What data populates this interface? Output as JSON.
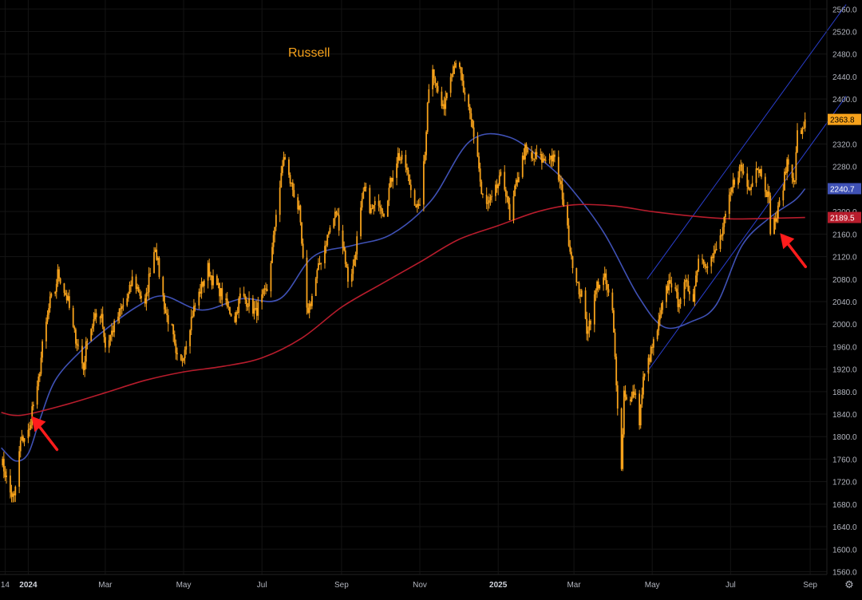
{
  "chart_data": {
    "type": "candlestick",
    "title": "Russell",
    "xlim": [
      "2023-12-10",
      "2025-09-14"
    ],
    "ylim": [
      1555,
      2576
    ],
    "y_ticks": [
      1560,
      1600,
      1640,
      1680,
      1720,
      1760,
      1800,
      1840,
      1880,
      1920,
      1960,
      2000,
      2040,
      2080,
      2120,
      2160,
      2200,
      2240,
      2280,
      2320,
      2360,
      2400,
      2440,
      2480,
      2520,
      2560
    ],
    "x_ticks": [
      {
        "label": "14",
        "date": "2023-12-14"
      },
      {
        "label": "2024",
        "date": "2024-01-01"
      },
      {
        "label": "Mar",
        "date": "2024-03-01"
      },
      {
        "label": "May",
        "date": "2024-05-01"
      },
      {
        "label": "Jul",
        "date": "2024-07-01"
      },
      {
        "label": "Sep",
        "date": "2024-09-01"
      },
      {
        "label": "Nov",
        "date": "2024-11-01"
      },
      {
        "label": "2025",
        "date": "2025-01-01"
      },
      {
        "label": "Mar",
        "date": "2025-03-01"
      },
      {
        "label": "May",
        "date": "2025-05-01"
      },
      {
        "label": "Jul",
        "date": "2025-07-01"
      },
      {
        "label": "Sep",
        "date": "2025-09-01"
      }
    ],
    "price_keypoints": [
      [
        "2023-12-11",
        1760
      ],
      [
        "2023-12-18",
        1700
      ],
      [
        "2023-12-21",
        1690
      ],
      [
        "2023-12-26",
        1790
      ],
      [
        "2023-12-29",
        1800
      ],
      [
        "2024-01-02",
        1810
      ],
      [
        "2024-01-04",
        1850
      ],
      [
        "2024-01-08",
        1880
      ],
      [
        "2024-01-12",
        1960
      ],
      [
        "2024-01-18",
        2040
      ],
      [
        "2024-01-22",
        2060
      ],
      [
        "2024-01-24",
        2090
      ],
      [
        "2024-01-26",
        2080
      ],
      [
        "2024-02-01",
        2040
      ],
      [
        "2024-02-05",
        1990
      ],
      [
        "2024-02-09",
        1960
      ],
      [
        "2024-02-13",
        1920
      ],
      [
        "2024-02-16",
        1980
      ],
      [
        "2024-02-22",
        2010
      ],
      [
        "2024-02-27",
        2020
      ],
      [
        "2024-03-01",
        1960
      ],
      [
        "2024-03-05",
        1980
      ],
      [
        "2024-03-12",
        2020
      ],
      [
        "2024-03-19",
        2050
      ],
      [
        "2024-03-22",
        2080
      ],
      [
        "2024-03-27",
        2060
      ],
      [
        "2024-04-01",
        2030
      ],
      [
        "2024-04-05",
        2100
      ],
      [
        "2024-04-09",
        2140
      ],
      [
        "2024-04-12",
        2090
      ],
      [
        "2024-04-17",
        2020
      ],
      [
        "2024-04-22",
        1990
      ],
      [
        "2024-04-25",
        1940
      ],
      [
        "2024-04-29",
        1930
      ],
      [
        "2024-05-03",
        1970
      ],
      [
        "2024-05-08",
        2020
      ],
      [
        "2024-05-14",
        2060
      ],
      [
        "2024-05-20",
        2100
      ],
      [
        "2024-05-23",
        2080
      ],
      [
        "2024-05-29",
        2060
      ],
      [
        "2024-06-04",
        2030
      ],
      [
        "2024-06-10",
        2010
      ],
      [
        "2024-06-14",
        2050
      ],
      [
        "2024-06-20",
        2040
      ],
      [
        "2024-06-26",
        2020
      ],
      [
        "2024-07-02",
        2050
      ],
      [
        "2024-07-05",
        2060
      ],
      [
        "2024-07-10",
        2150
      ],
      [
        "2024-07-12",
        2200
      ],
      [
        "2024-07-16",
        2260
      ],
      [
        "2024-07-18",
        2300
      ],
      [
        "2024-07-22",
        2260
      ],
      [
        "2024-07-25",
        2240
      ],
      [
        "2024-07-30",
        2200
      ],
      [
        "2024-08-01",
        2140
      ],
      [
        "2024-08-05",
        2020
      ],
      [
        "2024-08-08",
        2040
      ],
      [
        "2024-08-13",
        2090
      ],
      [
        "2024-08-19",
        2140
      ],
      [
        "2024-08-23",
        2170
      ],
      [
        "2024-08-28",
        2200
      ],
      [
        "2024-09-03",
        2130
      ],
      [
        "2024-09-06",
        2080
      ],
      [
        "2024-09-10",
        2100
      ],
      [
        "2024-09-16",
        2200
      ],
      [
        "2024-09-19",
        2240
      ],
      [
        "2024-09-24",
        2200
      ],
      [
        "2024-09-30",
        2220
      ],
      [
        "2024-10-04",
        2200
      ],
      [
        "2024-10-10",
        2260
      ],
      [
        "2024-10-15",
        2300
      ],
      [
        "2024-10-21",
        2280
      ],
      [
        "2024-10-25",
        2240
      ],
      [
        "2024-10-31",
        2200
      ],
      [
        "2024-11-05",
        2300
      ],
      [
        "2024-11-07",
        2400
      ],
      [
        "2024-11-11",
        2460
      ],
      [
        "2024-11-14",
        2420
      ],
      [
        "2024-11-19",
        2380
      ],
      [
        "2024-11-25",
        2450
      ],
      [
        "2024-11-29",
        2470
      ],
      [
        "2024-12-03",
        2440
      ],
      [
        "2024-12-06",
        2400
      ],
      [
        "2024-12-11",
        2360
      ],
      [
        "2024-12-16",
        2300
      ],
      [
        "2024-12-19",
        2230
      ],
      [
        "2024-12-23",
        2210
      ],
      [
        "2024-12-27",
        2220
      ],
      [
        "2025-01-03",
        2260
      ],
      [
        "2025-01-08",
        2230
      ],
      [
        "2025-01-10",
        2180
      ],
      [
        "2025-01-15",
        2250
      ],
      [
        "2025-01-22",
        2310
      ],
      [
        "2025-01-27",
        2290
      ],
      [
        "2025-01-31",
        2300
      ],
      [
        "2025-02-05",
        2290
      ],
      [
        "2025-02-10",
        2300
      ],
      [
        "2025-02-14",
        2290
      ],
      [
        "2025-02-20",
        2230
      ],
      [
        "2025-02-25",
        2150
      ],
      [
        "2025-03-03",
        2070
      ],
      [
        "2025-03-07",
        2050
      ],
      [
        "2025-03-11",
        1990
      ],
      [
        "2025-03-14",
        2010
      ],
      [
        "2025-03-19",
        2070
      ],
      [
        "2025-03-25",
        2080
      ],
      [
        "2025-03-31",
        2020
      ],
      [
        "2025-04-03",
        1900
      ],
      [
        "2025-04-07",
        1740
      ],
      [
        "2025-04-09",
        1880
      ],
      [
        "2025-04-14",
        1860
      ],
      [
        "2025-04-17",
        1880
      ],
      [
        "2025-04-21",
        1830
      ],
      [
        "2025-04-24",
        1900
      ],
      [
        "2025-04-30",
        1950
      ],
      [
        "2025-05-05",
        1990
      ],
      [
        "2025-05-12",
        2060
      ],
      [
        "2025-05-15",
        2080
      ],
      [
        "2025-05-21",
        2040
      ],
      [
        "2025-05-27",
        2070
      ],
      [
        "2025-06-02",
        2050
      ],
      [
        "2025-06-06",
        2120
      ],
      [
        "2025-06-12",
        2110
      ],
      [
        "2025-06-18",
        2120
      ],
      [
        "2025-06-24",
        2160
      ],
      [
        "2025-06-30",
        2220
      ],
      [
        "2025-07-03",
        2250
      ],
      [
        "2025-07-09",
        2280
      ],
      [
        "2025-07-15",
        2240
      ],
      [
        "2025-07-21",
        2280
      ],
      [
        "2025-07-25",
        2270
      ],
      [
        "2025-07-31",
        2220
      ],
      [
        "2025-08-01",
        2170
      ],
      [
        "2025-08-06",
        2190
      ],
      [
        "2025-08-12",
        2260
      ],
      [
        "2025-08-14",
        2290
      ],
      [
        "2025-08-18",
        2270
      ],
      [
        "2025-08-20",
        2250
      ],
      [
        "2025-08-22",
        2350
      ],
      [
        "2025-08-25",
        2330
      ],
      [
        "2025-08-28",
        2363.8
      ]
    ],
    "series": [
      {
        "name": "",
        "color": "#f7a21b",
        "last": "2363.8"
      },
      {
        "name": "",
        "color": "#3f51b5",
        "last": "2240.7",
        "points": [
          [
            "2023-12-11",
            1780
          ],
          [
            "2023-12-22",
            1757
          ],
          [
            "2024-01-01",
            1770
          ],
          [
            "2024-01-10",
            1830
          ],
          [
            "2024-01-22",
            1900
          ],
          [
            "2024-02-10",
            1950
          ],
          [
            "2024-03-01",
            1990
          ],
          [
            "2024-03-25",
            2030
          ],
          [
            "2024-04-15",
            2050
          ],
          [
            "2024-05-15",
            2025
          ],
          [
            "2024-06-15",
            2045
          ],
          [
            "2024-07-15",
            2045
          ],
          [
            "2024-08-10",
            2120
          ],
          [
            "2024-09-10",
            2140
          ],
          [
            "2024-10-10",
            2160
          ],
          [
            "2024-11-10",
            2220
          ],
          [
            "2024-12-10",
            2325
          ],
          [
            "2025-01-10",
            2332
          ],
          [
            "2025-02-10",
            2280
          ],
          [
            "2025-03-01",
            2235
          ],
          [
            "2025-03-25",
            2160
          ],
          [
            "2025-04-20",
            2050
          ],
          [
            "2025-05-10",
            1995
          ],
          [
            "2025-06-01",
            2005
          ],
          [
            "2025-06-20",
            2035
          ],
          [
            "2025-07-10",
            2140
          ],
          [
            "2025-08-01",
            2190
          ],
          [
            "2025-08-20",
            2220
          ],
          [
            "2025-08-28",
            2240.7
          ]
        ]
      },
      {
        "name": "",
        "color": "#b71c2c",
        "last": "2189.5",
        "points": [
          [
            "2023-12-11",
            1843
          ],
          [
            "2023-12-20",
            1838
          ],
          [
            "2024-01-01",
            1840
          ],
          [
            "2024-02-01",
            1858
          ],
          [
            "2024-03-01",
            1878
          ],
          [
            "2024-04-01",
            1900
          ],
          [
            "2024-05-01",
            1915
          ],
          [
            "2024-06-01",
            1925
          ],
          [
            "2024-07-01",
            1940
          ],
          [
            "2024-08-01",
            1975
          ],
          [
            "2024-09-01",
            2030
          ],
          [
            "2024-10-01",
            2070
          ],
          [
            "2024-11-01",
            2110
          ],
          [
            "2024-12-01",
            2150
          ],
          [
            "2025-01-01",
            2175
          ],
          [
            "2025-02-01",
            2200
          ],
          [
            "2025-03-01",
            2212
          ],
          [
            "2025-04-01",
            2210
          ],
          [
            "2025-05-01",
            2200
          ],
          [
            "2025-06-01",
            2192
          ],
          [
            "2025-07-01",
            2187
          ],
          [
            "2025-08-01",
            2188
          ],
          [
            "2025-08-28",
            2189.5
          ]
        ]
      }
    ],
    "channel_lines": [
      {
        "color": "#2a3fcf",
        "from": [
          "2025-04-27",
          2080
        ],
        "to": [
          "2025-09-29",
          2568
        ]
      },
      {
        "color": "#2a3fcf",
        "from": [
          "2025-04-27",
          1915
        ],
        "to": [
          "2025-09-29",
          2405
        ]
      }
    ],
    "annotations": [
      {
        "type": "arrow",
        "color": "#ff1c1c",
        "target": [
          "2024-01-01",
          1845
        ]
      },
      {
        "type": "arrow",
        "color": "#ff1c1c",
        "target": [
          "2025-08-06",
          2170
        ]
      }
    ],
    "grid": true,
    "background": "#000000",
    "axis_text_color": "#b2b5be"
  }
}
